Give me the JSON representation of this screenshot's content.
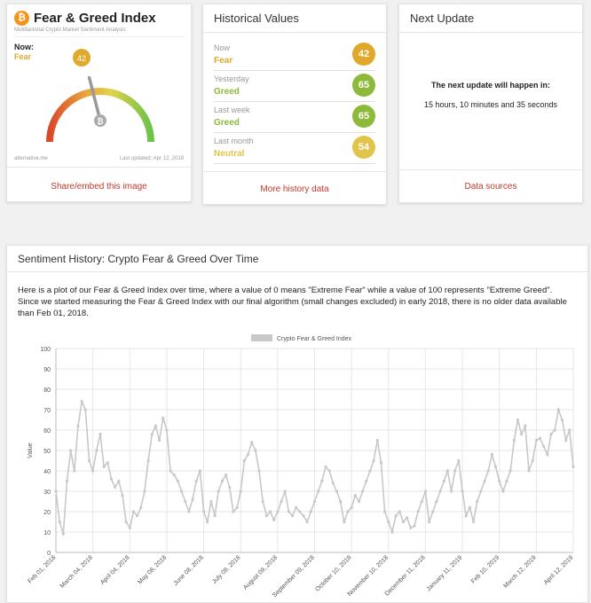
{
  "index_card": {
    "title": "Fear & Greed Index",
    "subtitle": "Multifactorial Crypto Market Sentiment Analysis",
    "now_label": "Now:",
    "now_value": "Fear",
    "gauge_value": "42",
    "gauge_level": 42,
    "gauge_center_symbol": "₿",
    "source": "alternative.me",
    "last_updated": "Last updated: Apr 12, 2019",
    "footer_link": "Share/embed this image",
    "logo_symbol": "₿"
  },
  "historical": {
    "title": "Historical Values",
    "rows": [
      {
        "label": "Now",
        "state": "Fear",
        "value": "42",
        "color": "#e0a92c"
      },
      {
        "label": "Yesterday",
        "state": "Greed",
        "value": "65",
        "color": "#8dba3a"
      },
      {
        "label": "Last week",
        "state": "Greed",
        "value": "65",
        "color": "#8dba3a"
      },
      {
        "label": "Last month",
        "state": "Neutral",
        "value": "54",
        "color": "#e1c54b"
      }
    ],
    "footer_link": "More history data"
  },
  "next_update": {
    "title": "Next Update",
    "line1": "The next update will happen in:",
    "line2": "15 hours, 10 minutes and 35 seconds",
    "footer_link": "Data sources"
  },
  "history_section": {
    "title": "Sentiment History: Crypto Fear & Greed Over Time",
    "description": "Here is a plot of our Fear & Greed Index over time, where a value of 0 means \"Extreme Fear\" while a value of 100 represents \"Extreme Greed\". Since we started measuring the Fear & Greed Index with our final algorithm (small changes excluded) in early 2018, there is no older data available than Feb 01, 2018."
  },
  "chart_data": {
    "type": "line",
    "legend": "Crypto Fear & Greed Index",
    "legend_position": "top",
    "ylabel": "Value",
    "xlabel": "",
    "ylim": [
      0,
      100
    ],
    "yticks": [
      0,
      10,
      20,
      30,
      40,
      50,
      60,
      70,
      80,
      90,
      100
    ],
    "grid": true,
    "color": "#c8c8c8",
    "x_ticks": [
      "Feb 01, 2018",
      "March 04, 2018",
      "April 04, 2018",
      "May 08, 2018",
      "June 08, 2018",
      "July 09, 2018",
      "August 09, 2018",
      "September 09, 2018",
      "October 10, 2018",
      "November 10, 2018",
      "December 11, 2018",
      "January 11, 2019",
      "Feb 10, 2019",
      "March 12, 2019",
      "April 12, 2019"
    ],
    "series": [
      {
        "name": "Crypto Fear & Greed Index",
        "x_index": [
          0,
          0.1,
          0.2,
          0.3,
          0.4,
          0.5,
          0.6,
          0.7,
          0.8,
          0.9,
          1.0,
          1.1,
          1.2,
          1.3,
          1.4,
          1.5,
          1.6,
          1.7,
          1.8,
          1.9,
          2.0,
          2.1,
          2.2,
          2.3,
          2.4,
          2.5,
          2.6,
          2.7,
          2.8,
          2.9,
          3.0,
          3.1,
          3.2,
          3.3,
          3.4,
          3.5,
          3.6,
          3.7,
          3.8,
          3.9,
          4.0,
          4.1,
          4.2,
          4.3,
          4.4,
          4.5,
          4.6,
          4.7,
          4.8,
          4.9,
          5.0,
          5.1,
          5.2,
          5.3,
          5.4,
          5.5,
          5.6,
          5.7,
          5.8,
          5.9,
          6.0,
          6.1,
          6.2,
          6.3,
          6.4,
          6.5,
          6.6,
          6.7,
          6.8,
          6.9,
          7.0,
          7.1,
          7.2,
          7.3,
          7.4,
          7.5,
          7.6,
          7.7,
          7.8,
          7.9,
          8.0,
          8.1,
          8.2,
          8.3,
          8.4,
          8.5,
          8.6,
          8.7,
          8.8,
          8.9,
          9.0,
          9.1,
          9.2,
          9.3,
          9.4,
          9.5,
          9.6,
          9.7,
          9.8,
          9.9,
          10.0,
          10.1,
          10.2,
          10.3,
          10.4,
          10.5,
          10.6,
          10.7,
          10.8,
          10.9,
          11.0,
          11.1,
          11.2,
          11.3,
          11.4,
          11.5,
          11.6,
          11.7,
          11.8,
          11.9,
          12.0,
          12.1,
          12.2,
          12.3,
          12.4,
          12.5,
          12.6,
          12.7,
          12.8,
          12.9,
          13.0,
          13.1,
          13.2,
          13.3,
          13.4,
          13.5,
          13.6,
          13.7,
          13.8,
          13.9,
          14.0
        ],
        "values": [
          30,
          15,
          9,
          35,
          50,
          40,
          62,
          74,
          70,
          45,
          40,
          50,
          58,
          42,
          44,
          36,
          32,
          35,
          28,
          15,
          12,
          20,
          18,
          22,
          30,
          45,
          58,
          62,
          55,
          66,
          60,
          40,
          38,
          35,
          30,
          25,
          20,
          26,
          35,
          40,
          20,
          15,
          25,
          18,
          30,
          35,
          38,
          32,
          20,
          22,
          30,
          45,
          48,
          54,
          50,
          40,
          25,
          18,
          20,
          16,
          20,
          25,
          30,
          20,
          18,
          22,
          20,
          18,
          15,
          20,
          25,
          30,
          35,
          42,
          40,
          34,
          30,
          25,
          15,
          20,
          22,
          28,
          25,
          30,
          35,
          40,
          45,
          55,
          44,
          20,
          15,
          10,
          18,
          20,
          15,
          17,
          12,
          13,
          20,
          25,
          30,
          15,
          20,
          25,
          30,
          35,
          40,
          30,
          40,
          45,
          30,
          18,
          22,
          15,
          25,
          30,
          35,
          40,
          48,
          42,
          35,
          30,
          35,
          40,
          55,
          65,
          58,
          62,
          40,
          45,
          55,
          56,
          52,
          48,
          58,
          60,
          70,
          65,
          55,
          60,
          42
        ]
      }
    ]
  }
}
